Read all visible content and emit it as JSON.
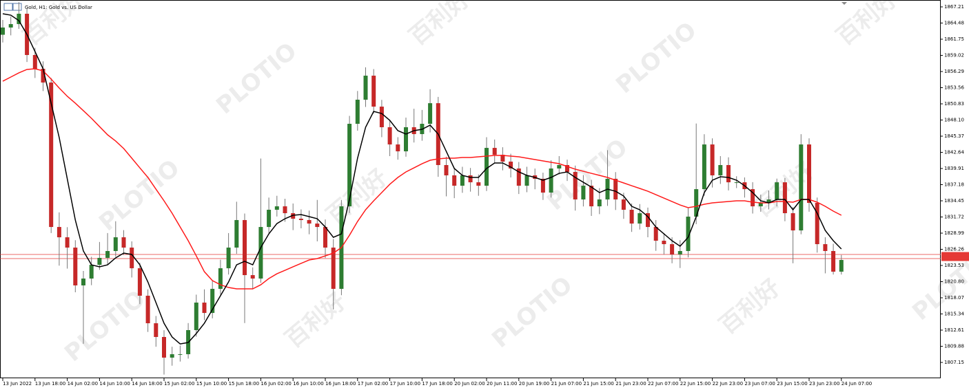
{
  "chart_data": {
    "type": "candlestick",
    "title": "Gold, H1:  Gold vs. US Dollar",
    "watermark": [
      "百利好",
      "PLOTIO"
    ],
    "categories": [
      "13 Jun 2022",
      null,
      null,
      null,
      "13 Jun 18:00",
      null,
      null,
      null,
      "14 Jun 02:00",
      null,
      null,
      null,
      "14 Jun 10:00",
      null,
      null,
      null,
      "14 Jun 18:00",
      null,
      null,
      null,
      "15 Jun 02:00",
      null,
      null,
      null,
      "15 Jun 10:00",
      null,
      null,
      null,
      "15 Jun 18:00",
      null,
      null,
      null,
      "16 Jun 02:00",
      null,
      null,
      null,
      "16 Jun 10:00",
      null,
      null,
      null,
      "16 Jun 18:00",
      null,
      null,
      null,
      "17 Jun 02:00",
      null,
      null,
      null,
      "17 Jun 10:00",
      null,
      null,
      null,
      "17 Jun 18:00",
      null,
      null,
      null,
      "20 Jun 02:00",
      null,
      null,
      null,
      "20 Jun 11:00",
      null,
      null,
      null,
      "20 Jun 19:00",
      null,
      null,
      null,
      "21 Jun 07:00",
      null,
      null,
      null,
      "21 Jun 15:00",
      null,
      null,
      null,
      "21 Jun 23:00",
      null,
      null,
      null,
      "22 Jun 07:00",
      null,
      null,
      null,
      "22 Jun 15:00",
      null,
      null,
      null,
      "22 Jun 23:00",
      null,
      null,
      null,
      "23 Jun 07:00",
      null,
      null,
      null,
      "23 Jun 15:00",
      null,
      null,
      null,
      "23 Jun 23:00",
      null,
      null,
      null,
      "24 Jun 07:00"
    ],
    "open": [
      1862.5,
      1863.72,
      1864.3,
      1866.05,
      1859.08,
      1856.75,
      1854.43,
      1830.03,
      1828.29,
      1826.55,
      1820.16,
      1821.32,
      1823.64,
      1824.81,
      1825.97,
      1828.29,
      1826.55,
      1823.06,
      1818.42,
      1813.77,
      1811.45,
      1807.96,
      1808.54,
      1808.54,
      1812.61,
      1817.26,
      1815.51,
      1819.58,
      1823.06,
      1826.55,
      1831.2,
      1821.9,
      1821.32,
      1830.03,
      1832.94,
      1833.52,
      1832.36,
      1831.43,
      1831.2,
      1830.61,
      1830.03,
      1826.55,
      1819.58,
      1833.52,
      1847.46,
      1851.53,
      1855.59,
      1850.36,
      1846.88,
      1843.97,
      1842.81,
      1846.88,
      1845.72,
      1847.46,
      1850.94,
      1840.49,
      1838.75,
      1837.0,
      1838.75,
      1837.58,
      1837.0,
      1843.39,
      1842.23,
      1841.07,
      1839.91,
      1837.0,
      1838.75,
      1838.17,
      1835.84,
      1839.91,
      1840.49,
      1839.33,
      1834.68,
      1837.0,
      1833.52,
      1834.68,
      1838.17,
      1834.68,
      1832.94,
      1830.61,
      1832.36,
      1830.03,
      1827.71,
      1827.13,
      1825.39,
      1825.97,
      1831.78,
      1836.42,
      1843.97,
      1838.75,
      1840.49,
      1837.58,
      1837.58,
      1836.42,
      1833.52,
      1834.1,
      1834.68,
      1837.58,
      1832.36,
      1829.45,
      1843.97,
      1834.1,
      1827.13,
      1825.97,
      1822.48
    ],
    "high": [
      1865.0,
      1865.6,
      1868.0,
      1867.0,
      1860.3,
      1858.0,
      1855.2,
      1832.5,
      1830.0,
      1827.8,
      1822.6,
      1825.0,
      1827.5,
      1829.0,
      1831.0,
      1829.5,
      1827.6,
      1824.0,
      1819.5,
      1815.0,
      1812.6,
      1809.8,
      1810.0,
      1813.8,
      1818.6,
      1819.5,
      1821.0,
      1824.5,
      1829.0,
      1834.3,
      1832.3,
      1823.2,
      1841.6,
      1835.0,
      1835.3,
      1834.8,
      1834.0,
      1833.0,
      1832.8,
      1834.6,
      1831.3,
      1828.0,
      1834.6,
      1848.8,
      1853.0,
      1857.0,
      1856.7,
      1851.5,
      1848.0,
      1845.2,
      1848.5,
      1850.0,
      1849.8,
      1853.3,
      1852.0,
      1841.9,
      1840.0,
      1840.2,
      1840.0,
      1838.9,
      1845.2,
      1844.8,
      1843.5,
      1842.4,
      1841.0,
      1840.2,
      1839.9,
      1839.2,
      1841.3,
      1842.0,
      1841.4,
      1840.4,
      1838.8,
      1838.0,
      1836.6,
      1843.0,
      1839.3,
      1835.8,
      1834.0,
      1833.9,
      1833.3,
      1831.2,
      1829.0,
      1828.3,
      1827.8,
      1833.2,
      1847.5,
      1845.7,
      1845.0,
      1842.0,
      1841.8,
      1838.6,
      1838.4,
      1837.6,
      1835.5,
      1836.2,
      1838.2,
      1838.3,
      1833.4,
      1845.7,
      1845.0,
      1835.0,
      1828.3,
      1827.2,
      1825.3
    ],
    "low": [
      1861.2,
      1862.4,
      1863.5,
      1857.9,
      1855.2,
      1853.0,
      1829.0,
      1823.5,
      1823.0,
      1819.0,
      1810.3,
      1820.2,
      1822.8,
      1823.6,
      1825.0,
      1825.3,
      1821.5,
      1817.0,
      1812.3,
      1809.8,
      1805.1,
      1806.6,
      1807.3,
      1807.8,
      1811.5,
      1814.3,
      1814.6,
      1818.6,
      1822.0,
      1825.5,
      1813.8,
      1819.5,
      1820.6,
      1829.0,
      1831.8,
      1830.9,
      1829.5,
      1829.8,
      1828.8,
      1827.6,
      1824.8,
      1816.1,
      1818.5,
      1832.4,
      1846.3,
      1850.3,
      1849.2,
      1845.2,
      1842.0,
      1841.4,
      1841.9,
      1844.3,
      1844.6,
      1846.0,
      1838.5,
      1835.2,
      1834.9,
      1835.8,
      1836.0,
      1835.3,
      1836.1,
      1840.9,
      1839.6,
      1838.4,
      1835.6,
      1835.9,
      1836.4,
      1834.6,
      1835.0,
      1838.9,
      1837.8,
      1832.8,
      1833.5,
      1831.9,
      1832.2,
      1833.6,
      1832.9,
      1831.4,
      1829.2,
      1829.6,
      1828.3,
      1826.0,
      1825.4,
      1823.9,
      1823.1,
      1824.9,
      1830.5,
      1835.3,
      1836.7,
      1837.3,
      1836.2,
      1836.6,
      1835.0,
      1832.3,
      1832.6,
      1833.0,
      1833.5,
      1831.0,
      1823.9,
      1828.8,
      1832.6,
      1825.7,
      1822.2,
      1822.0,
      1822.0
    ],
    "close": [
      1863.72,
      1864.3,
      1866.05,
      1859.08,
      1856.75,
      1854.43,
      1830.03,
      1828.29,
      1826.55,
      1820.16,
      1821.32,
      1823.64,
      1824.81,
      1825.97,
      1828.29,
      1826.55,
      1823.06,
      1818.42,
      1813.77,
      1811.45,
      1807.96,
      1808.54,
      1808.54,
      1812.61,
      1817.26,
      1815.51,
      1819.58,
      1823.06,
      1826.55,
      1831.2,
      1821.9,
      1821.32,
      1830.03,
      1832.94,
      1833.52,
      1832.36,
      1831.43,
      1831.2,
      1830.61,
      1830.03,
      1826.55,
      1819.58,
      1833.52,
      1847.46,
      1851.53,
      1855.59,
      1850.36,
      1846.88,
      1843.97,
      1842.81,
      1846.88,
      1845.72,
      1847.46,
      1850.94,
      1840.49,
      1838.75,
      1837.0,
      1838.75,
      1837.58,
      1837.0,
      1843.39,
      1842.23,
      1841.07,
      1839.91,
      1837.0,
      1838.75,
      1838.17,
      1835.84,
      1839.91,
      1840.49,
      1839.33,
      1834.68,
      1837.0,
      1833.52,
      1834.68,
      1838.17,
      1834.68,
      1832.94,
      1830.61,
      1832.36,
      1830.03,
      1827.71,
      1827.13,
      1825.39,
      1825.97,
      1831.78,
      1836.42,
      1843.97,
      1838.75,
      1840.49,
      1837.58,
      1837.58,
      1836.42,
      1833.52,
      1834.1,
      1834.68,
      1837.58,
      1832.36,
      1829.45,
      1843.97,
      1834.1,
      1827.13,
      1825.97,
      1822.48,
      1824.46
    ],
    "up_color": "#2e7d32",
    "down_color": "#c62828",
    "overlays": [
      {
        "color": "#ff1a1a",
        "values": [
          1854.66,
          1855.36,
          1856.06,
          1856.64,
          1856.75,
          1856.4,
          1855.01,
          1853.5,
          1852.11,
          1850.94,
          1849.67,
          1848.39,
          1846.99,
          1845.6,
          1844.55,
          1843.28,
          1841.65,
          1840.02,
          1838.4,
          1836.42,
          1834.45,
          1832.36,
          1830.03,
          1827.71,
          1825.15,
          1822.48,
          1820.97,
          1820.27,
          1819.81,
          1819.58,
          1819.58,
          1819.58,
          1820.27,
          1821.32,
          1822.13,
          1822.71,
          1823.3,
          1823.88,
          1824.46,
          1824.69,
          1825.15,
          1825.62,
          1826.55,
          1828.64,
          1830.96,
          1832.94,
          1834.45,
          1835.84,
          1837.24,
          1838.4,
          1839.33,
          1840.02,
          1840.72,
          1841.3,
          1841.53,
          1841.65,
          1841.65,
          1841.77,
          1841.77,
          1841.88,
          1842.0,
          1842.11,
          1842.11,
          1842.0,
          1841.88,
          1841.65,
          1841.42,
          1841.19,
          1840.95,
          1840.72,
          1840.26,
          1839.79,
          1839.44,
          1839.09,
          1838.75,
          1838.4,
          1837.93,
          1837.47,
          1837.0,
          1836.54,
          1836.07,
          1835.49,
          1834.91,
          1834.33,
          1833.75,
          1833.29,
          1833.52,
          1833.87,
          1834.1,
          1834.22,
          1834.33,
          1834.45,
          1834.45,
          1834.22,
          1834.1,
          1834.1,
          1834.33,
          1834.33,
          1834.22,
          1834.68,
          1834.68,
          1834.22,
          1833.52,
          1832.71,
          1832.01
        ]
      },
      {
        "color": "#000000",
        "values": [
          1866.05,
          1865.81,
          1864.88,
          1862.56,
          1859.66,
          1856.75,
          1850.94,
          1845.14,
          1838.17,
          1831.2,
          1825.97,
          1823.64,
          1823.3,
          1823.64,
          1824.81,
          1825.62,
          1825.39,
          1823.64,
          1820.74,
          1817.26,
          1813.77,
          1811.45,
          1810.28,
          1810.52,
          1812.03,
          1813.77,
          1816.09,
          1818.42,
          1820.74,
          1823.64,
          1824.23,
          1823.64,
          1826.55,
          1828.87,
          1830.61,
          1831.43,
          1832.01,
          1832.12,
          1831.78,
          1831.43,
          1830.03,
          1828.29,
          1828.87,
          1834.68,
          1841.65,
          1846.88,
          1849.55,
          1849.2,
          1848.04,
          1846.3,
          1845.72,
          1846.3,
          1846.53,
          1847.23,
          1845.72,
          1842.81,
          1839.91,
          1838.75,
          1838.4,
          1838.4,
          1839.91,
          1840.84,
          1840.84,
          1840.14,
          1839.33,
          1838.75,
          1838.4,
          1837.93,
          1838.4,
          1839.09,
          1839.33,
          1838.4,
          1837.58,
          1836.77,
          1835.84,
          1836.42,
          1836.07,
          1835.26,
          1833.52,
          1832.94,
          1831.78,
          1830.03,
          1828.87,
          1827.71,
          1826.78,
          1828.29,
          1831.78,
          1835.84,
          1837.93,
          1838.51,
          1838.4,
          1837.93,
          1837.0,
          1835.84,
          1834.45,
          1834.1,
          1834.68,
          1834.68,
          1832.94,
          1834.68,
          1834.68,
          1832.36,
          1829.45,
          1827.71,
          1826.32
        ]
      }
    ],
    "price_lines": [
      1825.39,
      1824.69
    ],
    "price_line_color": "#e53935",
    "ylim": [
      1804.48,
      1868.37
    ],
    "yticks": [
      1867.21,
      1864.48,
      1861.75,
      1859.02,
      1856.29,
      1853.56,
      1850.83,
      {
        "value": 1848.1,
        "label": "1848.10"
      },
      1845.37,
      1842.64,
      1839.91,
      1837.18,
      1834.45,
      1831.72,
      1828.99,
      1826.26,
      1823.53,
      {
        "value": 1820.8,
        "label": "1820.80"
      },
      1818.07,
      1815.34,
      1812.61,
      1809.88,
      1807.15
    ]
  }
}
